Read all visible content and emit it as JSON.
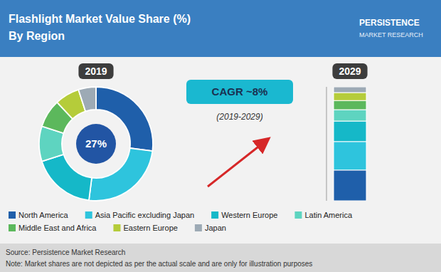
{
  "chart_data": [
    {
      "type": "pie",
      "title": "2019",
      "categories": [
        "North America",
        "Asia Pacific excluding Japan",
        "Western Europe",
        "Latin America",
        "Middle East and Africa",
        "Eastern Europe",
        "Japan"
      ],
      "values": [
        27,
        25,
        18,
        10,
        8,
        7,
        5
      ],
      "colors": [
        "#1f5faa",
        "#2ec4dd",
        "#15b8c8",
        "#5ed4c0",
        "#5cb85c",
        "#b5cc3a",
        "#9daab5"
      ],
      "legend": "bottom",
      "annotations": [
        "Flashlight Market Value Share (%)",
        "By Region",
        "27%",
        "CAGR ~8%",
        "(2019-2029)",
        "Source: Persistence Market Research",
        "Note: Market shares are not depicted as per the actual scale and are only for illustration purposes",
        "PERSISTENCE",
        "MARKET RESEARCH"
      ]
    },
    {
      "type": "bar",
      "title": "2029",
      "stacked": true,
      "tick_labels": false,
      "categories": [
        null
      ],
      "series": [
        {
          "name": "North America",
          "color": "#1f5faa",
          "values": [
            27
          ]
        },
        {
          "name": "Asia Pacific excluding Japan",
          "color": "#2ec4dd",
          "values": [
            25
          ]
        },
        {
          "name": "Western Europe",
          "color": "#15b8c8",
          "values": [
            18
          ]
        },
        {
          "name": "Latin America",
          "color": "#5ed4c0",
          "values": [
            10
          ]
        },
        {
          "name": "Middle East and Africa",
          "color": "#5cb85c",
          "values": [
            8
          ]
        },
        {
          "name": "Eastern Europe",
          "color": "#b5cc3a",
          "values": [
            7
          ]
        },
        {
          "name": "Japan",
          "color": "#9daab5",
          "values": [
            5
          ]
        }
      ],
      "ylim": [
        0,
        100
      ]
    }
  ]
}
